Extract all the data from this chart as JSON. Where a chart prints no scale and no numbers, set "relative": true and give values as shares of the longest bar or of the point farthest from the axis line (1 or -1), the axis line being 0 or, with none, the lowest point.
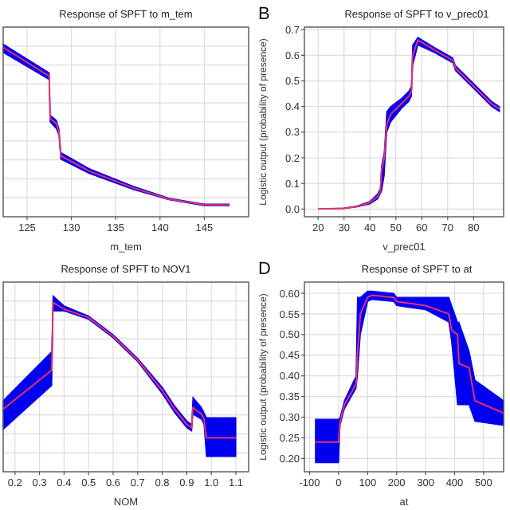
{
  "chart_data": [
    {
      "type": "line",
      "title": "Response of SPFT to m_tem",
      "xlabel": "m_tem",
      "relative": true,
      "tick_labels": "x",
      "grid": true,
      "xlim": [
        122.3,
        150
      ],
      "xticks": [
        125,
        130,
        135,
        140,
        145
      ],
      "series": [
        {
          "color": "#e8306a",
          "x": [
            122.3,
            127.5,
            127.6,
            128.3,
            128.6,
            128.8,
            132,
            137,
            141,
            145,
            147.8
          ],
          "values": [
            1.0,
            0.83,
            0.58,
            0.55,
            0.5,
            0.36,
            0.27,
            0.17,
            0.105,
            0.07,
            0.07
          ],
          "lower": [
            0.97,
            0.81,
            0.56,
            0.52,
            0.48,
            0.34,
            0.255,
            0.16,
            0.1,
            0.065,
            0.065
          ],
          "upper": [
            1.02,
            0.85,
            0.6,
            0.57,
            0.52,
            0.38,
            0.285,
            0.18,
            0.11,
            0.075,
            0.075
          ]
        }
      ]
    },
    {
      "type": "line",
      "title": "Response of SPFT to v_prec01",
      "xlabel": "v_prec01",
      "ylabel": "Logistic output (probability of presence)",
      "annotations": [
        "B"
      ],
      "grid": true,
      "xlim": [
        14.7,
        91.6
      ],
      "xticks": [
        20,
        30,
        40,
        50,
        60,
        70,
        80
      ],
      "ylim": [
        -0.03,
        0.71
      ],
      "yticks": [
        {
          "value": 0,
          "label": "0.0"
        },
        0.1,
        0.2,
        0.3,
        0.4,
        0.5,
        0.6,
        0.7
      ],
      "series": [
        {
          "color": "#e8306a",
          "x": [
            20,
            30,
            35,
            40,
            43,
            44,
            44.5,
            45.5,
            46.5,
            48,
            52,
            55,
            56,
            56.5,
            58.5,
            65,
            72,
            73,
            80,
            87,
            90
          ],
          "values": [
            0,
            0.003,
            0.01,
            0.025,
            0.05,
            0.07,
            0.15,
            0.2,
            0.33,
            0.37,
            0.41,
            0.44,
            0.46,
            0.6,
            0.66,
            0.62,
            0.58,
            0.55,
            0.48,
            0.41,
            0.39
          ],
          "lower": [
            0,
            0.002,
            0.008,
            0.02,
            0.04,
            0.06,
            0.07,
            0.13,
            0.3,
            0.34,
            0.39,
            0.42,
            0.44,
            0.56,
            0.64,
            0.61,
            0.57,
            0.54,
            0.47,
            0.4,
            0.38
          ],
          "upper": [
            0,
            0.004,
            0.012,
            0.03,
            0.06,
            0.08,
            0.17,
            0.22,
            0.38,
            0.4,
            0.43,
            0.46,
            0.48,
            0.64,
            0.67,
            0.63,
            0.59,
            0.56,
            0.49,
            0.42,
            0.4
          ]
        }
      ]
    },
    {
      "type": "line",
      "title": "Response of SPFT to NOV1",
      "xlabel": "NOM",
      "relative": true,
      "tick_labels": "x",
      "grid": true,
      "xlim": [
        0.152,
        1.152
      ],
      "xticks": [
        0.2,
        0.3,
        0.4,
        0.5,
        0.6,
        0.7,
        0.8,
        0.9,
        {
          "value": 1.0,
          "label": "1.0"
        },
        1.1
      ],
      "series": [
        {
          "color": "#e8306a",
          "x": [
            0.152,
            0.35,
            0.355,
            0.4,
            0.5,
            0.6,
            0.7,
            0.8,
            0.85,
            0.9,
            0.92,
            0.925,
            0.96,
            0.97,
            0.98,
            1.1
          ],
          "values": [
            0.37,
            0.6,
            1.0,
            0.96,
            0.91,
            0.8,
            0.66,
            0.48,
            0.37,
            0.28,
            0.26,
            0.38,
            0.34,
            0.31,
            0.2,
            0.2
          ],
          "lower": [
            0.25,
            0.51,
            0.95,
            0.95,
            0.9,
            0.79,
            0.65,
            0.46,
            0.35,
            0.26,
            0.24,
            0.34,
            0.31,
            0.28,
            0.09,
            0.09
          ],
          "upper": [
            0.42,
            0.71,
            1.04,
            0.98,
            0.92,
            0.81,
            0.67,
            0.5,
            0.39,
            0.3,
            0.28,
            0.44,
            0.38,
            0.35,
            0.32,
            0.32
          ]
        }
      ]
    },
    {
      "type": "line",
      "title": "Response of SPFT to at",
      "xlabel": "at",
      "ylabel": "Logistic output (probability of presence)",
      "annotations": [
        "D"
      ],
      "grid": true,
      "xlim": [
        -118,
        569
      ],
      "xticks": [
        -100,
        0,
        100,
        200,
        300,
        400,
        500
      ],
      "ylim": [
        0.168,
        0.627
      ],
      "yticks": [
        {
          "value": 0.2,
          "label": "0.20"
        },
        0.25,
        {
          "value": 0.3,
          "label": "0.30"
        },
        0.35,
        {
          "value": 0.4,
          "label": "0.40"
        },
        0.45,
        {
          "value": 0.5,
          "label": "0.50"
        },
        0.55,
        {
          "value": 0.6,
          "label": "0.60"
        }
      ],
      "series": [
        {
          "color": "#e8306a",
          "x": [
            -80,
            0,
            5,
            20,
            60,
            65,
            75,
            100,
            115,
            190,
            200,
            300,
            380,
            390,
            410,
            415,
            450,
            470,
            569
          ],
          "values": [
            0.24,
            0.24,
            0.29,
            0.33,
            0.38,
            0.45,
            0.55,
            0.59,
            0.595,
            0.59,
            0.58,
            0.57,
            0.55,
            0.51,
            0.5,
            0.43,
            0.42,
            0.34,
            0.31
          ],
          "lower": [
            0.19,
            0.19,
            0.28,
            0.32,
            0.37,
            0.4,
            0.5,
            0.58,
            0.585,
            0.58,
            0.57,
            0.56,
            0.53,
            0.48,
            0.33,
            0.33,
            0.33,
            0.29,
            0.28
          ],
          "upper": [
            0.295,
            0.295,
            0.3,
            0.34,
            0.4,
            0.59,
            0.59,
            0.605,
            0.605,
            0.6,
            0.59,
            0.59,
            0.59,
            0.57,
            0.53,
            0.53,
            0.46,
            0.39,
            0.34
          ]
        }
      ]
    }
  ]
}
